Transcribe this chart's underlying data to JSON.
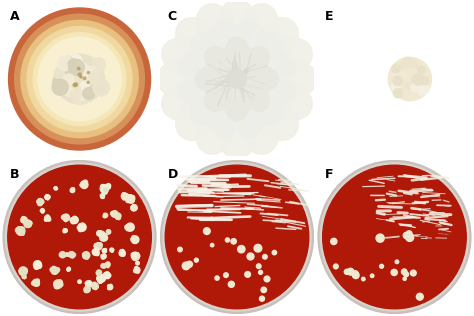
{
  "panel_labels": [
    "A",
    "B",
    "C",
    "D",
    "E",
    "F"
  ],
  "bg_color": "#ffffff",
  "bg_top_panels": "#b83520",
  "bg_E_panel": "#b83520",
  "agar_red": "#aa1a0a",
  "plate_rim": "#c8c0b8",
  "colony_cream": "#f0e8d0",
  "label_color": "#000000",
  "label_fontsize": 9,
  "label_fontweight": "bold",
  "fig_width": 4.74,
  "fig_height": 3.16
}
